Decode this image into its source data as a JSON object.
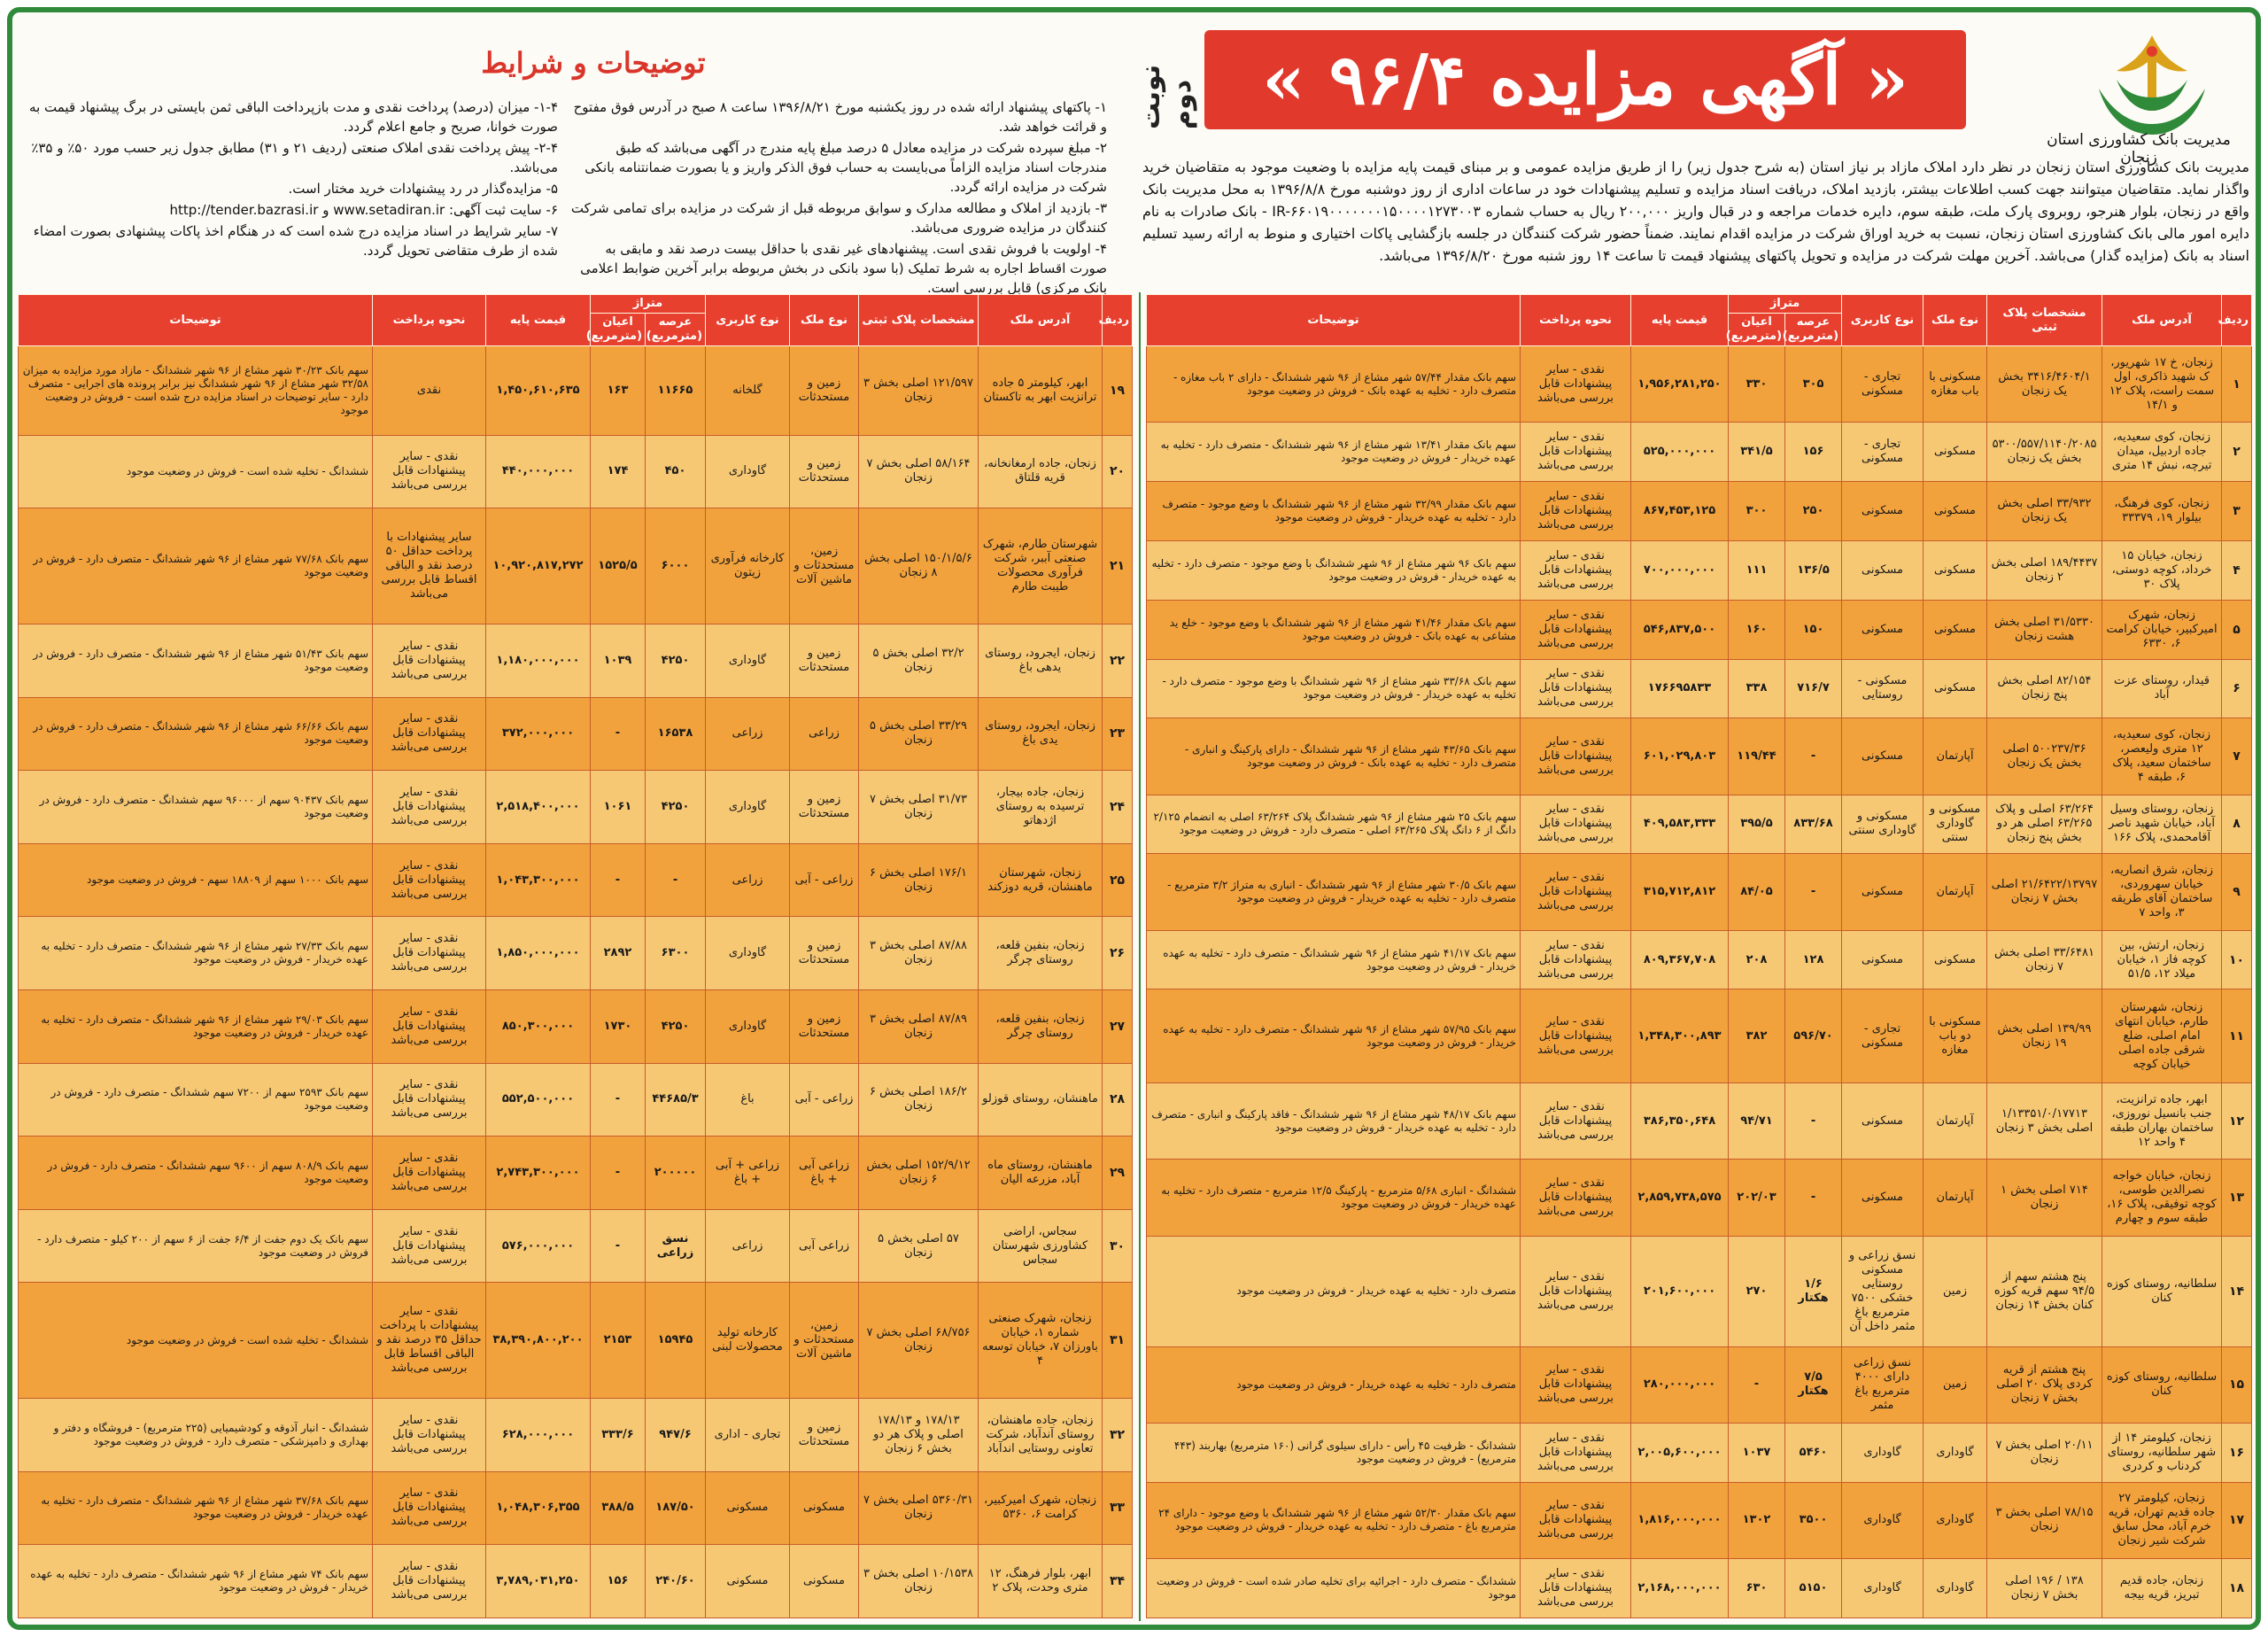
{
  "bank_name": "مدیریت بانک کشاورزی استان زنجان",
  "banner_title": "« آگهی مزایده ۹۶/۴ »",
  "round_label": "نوبت دوم",
  "intro_text": "مدیریت بانک کشاورزی استان زنجان در نظر دارد املاک مازاد بر نیاز استان (به شرح جدول زیر) را از طریق مزایده عمومی و بر مبنای قیمت پایه مزایده با وضعیت موجود به متقاضیان خرید واگذار نماید. متقاضیان میتوانند جهت کسب اطلاعات بیشتر، بازدید املاک، دریافت اسناد مزایده و تسلیم پیشنهادات خود در ساعات اداری از روز دوشنبه مورخ ۱۳۹۶/۸/۸ به محل مدیریت بانک واقع در زنجان، بلوار هنرجو، روبروی پارک ملت، طبقه سوم، دایره خدمات مراجعه و در قبال واریز ۲۰۰,۰۰۰ ریال به حساب شماره IR-۶۶۰۱۹۰۰۰۰۰۰۰۱۵۰۰۰۰۱۲۷۳۰۰۳ - بانک صادرات به نام دایره امور مالی بانک کشاورزی استان زنجان، نسبت به خرید اوراق شرکت در مزایده اقدام نمایند. ضمناً حضور شرکت کنندگان در جلسه بازگشایی پاکات اختیاری و منوط به ارائه رسید تسلیم اسناد به بانک (مزایده گذار) می‌باشد. آخرین مهلت شرکت در مزایده و تحویل پاکتهای پیشنهاد قیمت تا ساعت ۱۴ روز شنبه مورخ ۱۳۹۶/۸/۲۰ می‌باشد.",
  "conditions": {
    "title": "توضیحات و شرایط",
    "right_items": [
      "۱- پاکتهای پیشنهاد ارائه شده در روز یکشنبه مورخ ۱۳۹۶/۸/۲۱ ساعت ۸ صبح در آدرس فوق مفتوح و قرائت خواهد شد.",
      "۲- مبلغ سپرده شرکت در مزایده معادل ۵ درصد مبلغ پایه مندرج در آگهی می‌باشد که طبق مندرجات اسناد مزایده الزاماً می‌بایست به حساب فوق الذکر واریز و یا بصورت ضمانتنامه بانکی شرکت در مزایده ارائه گردد.",
      "۳- بازدید از املاک و مطالعه مدارک و سوابق مربوطه قبل از شرکت در مزایده برای تمامی شرکت کنندگان در مزایده ضروری می‌باشد.",
      "۴- اولویت با فروش نقدی است. پیشنهادهای غیر نقدی با حداقل بیست درصد نقد و مابقی به صورت اقساط اجاره به شرط تملیک (با سود بانکی در بخش مربوطه برابر آخرین ضوابط اعلامی بانک مرکزی) قابل بررسی است."
    ],
    "left_items": [
      "۱-۴- میزان (درصد) پرداخت نقدی و مدت بازپرداخت الباقی ثمن بایستی در برگ پیشنهاد قیمت به صورت خوانا، صریح و جامع اعلام گردد.",
      "۲-۴- پیش پرداخت نقدی املاک صنعتی (ردیف ۲۱ و ۳۱) مطابق جدول زیر حسب مورد ۵۰٪ و ۳۵٪ می‌باشد.",
      "۵- مزایده‌گذار در رد پیشنهادات خرید مختار است.",
      "۶- سایت ثبت آگهی: www.setadiran.ir و http://tender.bazrasi.ir",
      "۷- سایر شرایط در اسناد مزایده درج شده است که در هنگام اخذ پاکات پیشنهادی بصورت امضاء شده از طرف متقاضی تحویل گردد."
    ]
  },
  "table": {
    "headers": {
      "row": "ردیف",
      "address": "آدرس ملک",
      "plaque": "مشخصات پلاک ثبتی",
      "type": "نوع ملک",
      "usage": "نوع کاربری",
      "area_group": "متراژ",
      "land": "عرصه (مترمربع)",
      "building": "اعیان (مترمربع)",
      "price": "قیمت پایه",
      "payment": "نحوه پرداخت",
      "desc": "توضیحات"
    },
    "right_rows": [
      {
        "no": "۱",
        "address": "زنجان، خ ۱۷ شهریور، ک شهید ذاکری، اول سمت راست، پلاک ۱۲ و ۱۴/۱",
        "plaque": "۳۴۱۶/۴۶۰۴/۱ بخش یک زنجان",
        "type": "مسکونی با باب مغازه",
        "usage": "تجاری - مسکونی",
        "land": "۳۰۵",
        "building": "۳۳۰",
        "price": "۱,۹۵۶,۲۸۱,۲۵۰",
        "payment": "نقدی - سایر پیشنهادات قابل بررسی می‌باشد",
        "desc": "سهم بانک مقدار ۵۷/۴۴ شهر مشاع از ۹۶ شهر ششدانگ - دارای ۲ باب مغازه - متصرف دارد - تخلیه به عهده بانک - فروش در وضعیت موجود"
      },
      {
        "no": "۲",
        "address": "زنجان، کوی سعیدیه، جاده اردبیل، میدان تیرچه، نبش ۱۴ متری",
        "plaque": "۵۳۰۰/۵۵۷/۱۱۴۰/۲۰۸۵ بخش یک زنجان",
        "type": "مسکونی",
        "usage": "تجاری - مسکونی",
        "land": "۱۵۶",
        "building": "۳۴۱/۵",
        "price": "۵۲۵,۰۰۰,۰۰۰",
        "payment": "نقدی - سایر پیشنهادات قابل بررسی می‌باشد",
        "desc": "سهم بانک مقدار ۱۳/۴۱ شهر مشاع از ۹۶ شهر ششدانگ - متصرف دارد - تخلیه به عهده خریدار - فروش در وضعیت موجود"
      },
      {
        "no": "۳",
        "address": "زنجان، کوی فرهنگ، بیلوار ۱۹، ۳۳۳۷۹",
        "plaque": "۳۳/۹۳۲ اصلی بخش یک زنجان",
        "type": "مسکونی",
        "usage": "مسکونی",
        "land": "۲۵۰",
        "building": "۳۰۰",
        "price": "۸۶۷,۴۵۳,۱۲۵",
        "payment": "نقدی - سایر پیشنهادات قابل بررسی می‌باشد",
        "desc": "سهم بانک مقدار ۳۲/۹۹ شهر مشاع از ۹۶ شهر ششدانگ با وضع موجود - متصرف دارد - تخلیه به عهده خریدار - فروش در وضعیت موجود"
      },
      {
        "no": "۴",
        "address": "زنجان، خیابان ۱۵ خرداد، کوچه دوستی، پلاک ۳۰",
        "plaque": "۱۸۹/۴۴۳۷ اصلی بخش ۲ زنجان",
        "type": "مسکونی",
        "usage": "مسکونی",
        "land": "۱۳۶/۵",
        "building": "۱۱۱",
        "price": "۷۰۰,۰۰۰,۰۰۰",
        "payment": "نقدی - سایر پیشنهادات قابل بررسی می‌باشد",
        "desc": "سهم بانک ۹۶ شهر مشاع از ۹۶ شهر ششدانگ با وضع موجود - متصرف دارد - تخلیه به عهده خریدار - فروش در وضعیت موجود"
      },
      {
        "no": "۵",
        "address": "زنجان، شهرک امیرکبیر، خیابان کرامت ۶، ۶۳۳۰",
        "plaque": "۳۱/۵۳۳۰ اصلی بخش هشت زنجان",
        "type": "مسکونی",
        "usage": "مسکونی",
        "land": "۱۵۰",
        "building": "۱۶۰",
        "price": "۵۴۶,۸۳۷,۵۰۰",
        "payment": "نقدی - سایر پیشنهادات قابل بررسی می‌باشد",
        "desc": "سهم بانک مقدار ۴۱/۴۶ شهر مشاع از ۹۶ شهر ششدانگ با وضع موجود - خلع ید مشاعی به عهده بانک - فروش در وضعیت موجود"
      },
      {
        "no": "۶",
        "address": "قیدار، روستای عزت آباد",
        "plaque": "۸۲/۱۵۴ اصلی بخش پنج زنجان",
        "type": "مسکونی",
        "usage": "مسکونی - روستایی",
        "land": "۷۱۶/۷",
        "building": "۳۳۸",
        "price": "۱۷۶۶۹۵۸۳۳",
        "payment": "نقدی - سایر پیشنهادات قابل بررسی می‌باشد",
        "desc": "سهم بانک ۳۳/۶۸ شهر مشاع از ۹۶ شهر ششدانگ با وضع موجود - متصرف دارد - تخلیه به عهده خریدار - فروش در وضعیت موجود"
      },
      {
        "no": "۷",
        "address": "زنجان، کوی سعیدیه، ۱۲ متری ولیعصر، ساختمان سعید، پلاک ۶، طبقه ۴",
        "plaque": "۵۰۰۲۳۷/۳۶ اصلی بخش یک زنجان",
        "type": "آپارتمان",
        "usage": "مسکونی",
        "land": "-",
        "building": "۱۱۹/۴۴",
        "price": "۶۰۱,۰۲۹,۸۰۳",
        "payment": "نقدی - سایر پیشنهادات قابل بررسی می‌باشد",
        "desc": "سهم بانک ۴۳/۶۵ شهر مشاع از ۹۶ شهر ششدانگ - دارای پارکینگ و انباری - متصرف دارد - تخلیه به عهده بانک - فروش در وضعیت موجود"
      },
      {
        "no": "۸",
        "address": "زنجان، روستای وسیل آباد، خیابان شهید ناصر آقامحمدی، پلاک ۱۶۶",
        "plaque": "۶۳/۲۶۴ اصلی و پلاک ۶۳/۲۶۵ اصلی هر دو بخش پنج زنجان",
        "type": "مسکونی و گاوداری سنتی",
        "usage": "مسکونی و گاوداری سنتی",
        "land": "۸۳۳/۶۸",
        "building": "۳۹۵/۵",
        "price": "۴۰۹,۵۸۳,۳۳۳",
        "payment": "نقدی - سایر پیشنهادات قابل بررسی می‌باشد",
        "desc": "سهم بانک ۲۵ شهر مشاع از ۹۶ شهر ششدانگ پلاک ۶۳/۲۶۴ اصلی به انضمام ۲/۱۲۵ دانگ از ۶ دانگ پلاک ۶۳/۲۶۵ اصلی - متصرف دارد - فروش در وضعیت موجود"
      },
      {
        "no": "۹",
        "address": "زنجان، شرق انصاریه، خیابان سهروردی، ساختمان آقای طریقه ۳، واحد ۷",
        "plaque": "۲۱/۶۴۲۲/۱۳۷۹۷ اصلی بخش ۷ زنجان",
        "type": "آپارتمان",
        "usage": "مسکونی",
        "land": "-",
        "building": "۸۴/۰۵",
        "price": "۳۱۵,۷۱۲,۸۱۲",
        "payment": "نقدی - سایر پیشنهادات قابل بررسی می‌باشد",
        "desc": "سهم بانک ۳۰/۵ شهر مشاع از ۹۶ شهر ششدانگ - انباری به متراژ ۳/۲ مترمربع - متصرف دارد - تخلیه به عهده خریدار - فروش در وضعیت موجود"
      },
      {
        "no": "۱۰",
        "address": "زنجان، ارتش، بین کوچه فاز ۱، خیابان میلاد ۱۲، ۵۱/۵",
        "plaque": "۳۳/۶۴۸۱ اصلی بخش ۷ زنجان",
        "type": "مسکونی",
        "usage": "مسکونی",
        "land": "۱۲۸",
        "building": "۲۰۸",
        "price": "۸۰۹,۳۶۷,۷۰۸",
        "payment": "نقدی - سایر پیشنهادات قابل بررسی می‌باشد",
        "desc": "سهم بانک ۴۱/۱۷ شهر مشاع از ۹۶ شهر ششدانگ - متصرف دارد - تخلیه به عهده خریدار - فروش در وضعیت موجود"
      },
      {
        "no": "۱۱",
        "address": "زنجان، شهرستان طارم، خیابان انتهای امام اصلی، ضلع شرقی جاده اصلی خیابان کوچه",
        "plaque": "۱۳۹/۹۹ اصلی بخش ۱۹ زنجان",
        "type": "مسکونی با دو باب مغازه",
        "usage": "تجاری - مسکونی",
        "land": "۵۹۶/۷۰",
        "building": "۳۸۲",
        "price": "۱,۳۴۸,۳۰۰,۸۹۳",
        "payment": "نقدی - سایر پیشنهادات قابل بررسی می‌باشد",
        "desc": "سهم بانک ۵۷/۹۵ شهر مشاع از ۹۶ شهر ششدانگ - متصرف دارد - تخلیه به عهده خریدار - فروش در وضعیت موجود"
      },
      {
        "no": "۱۲",
        "address": "ابهر، جاده ترانزیت، جنب بانسیل نوروزی، ساختمان بهاران طبقه ۴ واحد ۱۲",
        "plaque": "۱/۱۳۳۵۱/۰/۱۷۷۱۳ اصلی بخش ۳ زنجان",
        "type": "آپارتمان",
        "usage": "مسکونی",
        "land": "-",
        "building": "۹۴/۷۱",
        "price": "۳۸۶,۳۵۰,۶۴۸",
        "payment": "نقدی - سایر پیشنهادات قابل بررسی می‌باشد",
        "desc": "سهم بانک ۴۸/۱۷ شهر مشاع از ۹۶ شهر ششدانگ - فاقد پارکینگ و انباری - متصرف دارد - تخلیه به عهده خریدار - فروش در وضعیت موجود"
      },
      {
        "no": "۱۳",
        "address": "زنجان، خیابان خواجه نصرالدین طوسی، کوچه توفیقی، پلاک ۱۶، طبقه سوم و چهارم",
        "plaque": "۷۱۴ اصلی بخش ۱ زنجان",
        "type": "آپارتمان",
        "usage": "مسکونی",
        "land": "-",
        "building": "۲۰۲/۰۳",
        "price": "۲,۸۵۹,۷۳۸,۵۷۵",
        "payment": "نقدی - سایر پیشنهادات قابل بررسی می‌باشد",
        "desc": "ششدانگ - انباری ۵/۶۸ مترمربع - پارکینگ ۱۲/۵ مترمربع - متصرف دارد - تخلیه به عهده خریدار - فروش در وضعیت موجود"
      },
      {
        "no": "۱۴",
        "address": "سلطانیه، روستای کوزه کنان",
        "plaque": "پنج هشتم سهم از ۹۴/۵ سهم قریه کوزه کنان بخش ۱۴ زنجان",
        "type": "زمین",
        "usage": "نسق زراعی و مسکونی روستایی خشکی ۷۵۰۰ مترمربع باغ مثمر داخل آن",
        "land": "۱/۶ هکتار",
        "building": "۲۷۰",
        "price": "۲۰۱,۶۰۰,۰۰۰",
        "payment": "نقدی - سایر پیشنهادات قابل بررسی می‌باشد",
        "desc": "متصرف دارد - تخلیه به عهده خریدار - فروش در وضعیت موجود"
      },
      {
        "no": "۱۵",
        "address": "سلطانیه، روستای کوزه کنان",
        "plaque": "پنج هشتم از قریه کردی پلاک ۲۰ اصلی بخش ۷ زنجان",
        "type": "زمین",
        "usage": "نسق زراعی دارای ۴۰۰۰ مترمربع باغ مثمر",
        "land": "۷/۵ هکتار",
        "building": "-",
        "price": "۲۸۰,۰۰۰,۰۰۰",
        "payment": "نقدی - سایر پیشنهادات قابل بررسی می‌باشد",
        "desc": "متصرف دارد - تخلیه به عهده خریدار - فروش در وضعیت موجود"
      },
      {
        "no": "۱۶",
        "address": "زنجان، کیلومتر ۱۴ از شهر سلطانیه، روستای کردناب و کردری",
        "plaque": "۲۰/۱۱ اصلی بخش ۷ زنجان",
        "type": "گاوداری",
        "usage": "گاوداری",
        "land": "۵۴۶۰",
        "building": "۱۰۳۷",
        "price": "۲,۰۰۵,۶۰۰,۰۰۰",
        "payment": "نقدی - سایر پیشنهادات قابل بررسی می‌باشد",
        "desc": "ششدانگ - ظرفیت ۴۵ رأس - دارای سیلوی گرانی (۱۶۰ مترمربع) بهاربند (۴۴۳ مترمربع) - فروش در وضعیت موجود"
      },
      {
        "no": "۱۷",
        "address": "زنجان، کیلومتر ۲۷ جاده قدیم تهران، قریه خرم آباد، محل سابق شرکت شیر زنجان",
        "plaque": "۷۸/۱۵ اصلی بخش ۳ زنجان",
        "type": "گاوداری",
        "usage": "گاوداری",
        "land": "۳۵۰۰",
        "building": "۱۳۰۲",
        "price": "۱,۸۱۶,۰۰۰,۰۰۰",
        "payment": "نقدی - سایر پیشنهادات قابل بررسی می‌باشد",
        "desc": "سهم بانک مقدار ۵۲/۳۰ شهر مشاع از ۹۶ شهر ششدانگ با وضع موجود - دارای ۲۴ مترمربع باغ - متصرف دارد - تخلیه به عهده خریدار - فروش در وضعیت موجود"
      },
      {
        "no": "۱۸",
        "address": "زنجان، جاده قدیم تبریز، قریه بیجه",
        "plaque": "۱۳۸ / ۱۹۶ اصلی بخش ۷ زنجان",
        "type": "گاوداری",
        "usage": "گاوداری",
        "land": "۵۱۵۰",
        "building": "۶۳۰",
        "price": "۲,۱۶۸,۰۰۰,۰۰۰",
        "payment": "نقدی - سایر پیشنهادات قابل بررسی می‌باشد",
        "desc": "ششدانگ - متصرف دارد - اجرائیه برای تخلیه صادر شده است - فروش در وضعیت موجود"
      }
    ],
    "left_rows": [
      {
        "no": "۱۹",
        "address": "ابهر، کیلومتر ۵ جاده ترانزیت ابهر به تاکستان",
        "plaque": "۱۲۱/۵۹۷ اصلی بخش ۳ زنجان",
        "type": "زمین و مستحدثات",
        "usage": "گلخانه",
        "land": "۱۱۶۶۵",
        "building": "۱۶۳",
        "price": "۱,۴۵۰,۶۱۰,۶۳۵",
        "payment": "نقدی",
        "desc": "سهم بانک ۳۰/۲۳ شهر مشاع از ۹۶ شهر ششدانگ - مازاد مورد مزایده به میزان ۳۲/۵۸ شهر مشاع از ۹۶ شهر ششدانگ نیز برابر پرونده های اجرایی - متصرف دارد - سایر توضیحات در اسناد مزایده درج شده است - فروش در وضعیت موجود"
      },
      {
        "no": "۲۰",
        "address": "زنجان، جاده ارمغانخانه، قریه قلتاق",
        "plaque": "۵۸/۱۶۴ اصلی بخش ۷ زنجان",
        "type": "زمین و مستحدثات",
        "usage": "گاوداری",
        "land": "۴۵۰",
        "building": "۱۷۴",
        "price": "۴۴۰,۰۰۰,۰۰۰",
        "payment": "نقدی - سایر پیشنهادات قابل بررسی می‌باشد",
        "desc": "ششدانگ - تخلیه شده است - فروش در وضعیت موجود"
      },
      {
        "no": "۲۱",
        "address": "شهرستان طارم، شهرک صنعتی آببر، شرکت فرآوری محصولات طیبت طارم",
        "plaque": "۱۵۰/۱/۵/۶ اصلی بخش ۸ زنجان",
        "type": "زمین، مستحدثات و ماشین آلات",
        "usage": "کارخانه فرآوری زیتون",
        "land": "۶۰۰۰",
        "building": "۱۵۲۵/۵",
        "price": "۱۰,۹۲۰,۸۱۷,۲۷۲",
        "payment": "سایر پیشنهادات با پرداخت حداقل ۵۰ درصد نقد و الباقی اقساط قابل بررسی می‌باشد",
        "desc": "سهم بانک ۷۷/۶۸ شهر مشاع از ۹۶ شهر ششدانگ - متصرف دارد - فروش در وضعیت موجود"
      },
      {
        "no": "۲۲",
        "address": "زنجان، ایجرود، روستای یدهی باغ",
        "plaque": "۳۲/۲ اصلی بخش ۵ زنجان",
        "type": "زمین و مستحدثات",
        "usage": "گاوداری",
        "land": "۴۲۵۰",
        "building": "۱۰۳۹",
        "price": "۱,۱۸۰,۰۰۰,۰۰۰",
        "payment": "نقدی - سایر پیشنهادات قابل بررسی می‌باشد",
        "desc": "سهم بانک ۵۱/۴۳ شهر مشاع از ۹۶ شهر ششدانگ - متصرف دارد - فروش در وضعیت موجود"
      },
      {
        "no": "۲۳",
        "address": "زنجان، ایجرود، روستای یدی باغ",
        "plaque": "۳۳/۲۹ اصلی بخش ۵ زنجان",
        "type": "زراعی",
        "usage": "زراعی",
        "land": "۱۶۵۳۸",
        "building": "-",
        "price": "۳۷۲,۰۰۰,۰۰۰",
        "payment": "نقدی - سایر پیشنهادات قابل بررسی می‌باشد",
        "desc": "سهم بانک ۶۶/۶۶ شهر مشاع از ۹۶ شهر ششدانگ - متصرف دارد - فروش در وضعیت موجود"
      },
      {
        "no": "۲۴",
        "address": "زنجان، جاده بیجار، ترسیده به روستای اژدهاتو",
        "plaque": "۳۱/۷۳ اصلی بخش ۷ زنجان",
        "type": "زمین و مستحدثات",
        "usage": "گاوداری",
        "land": "۴۲۵۰",
        "building": "۱۰۶۱",
        "price": "۲,۵۱۸,۴۰۰,۰۰۰",
        "payment": "نقدی - سایر پیشنهادات قابل بررسی می‌باشد",
        "desc": "سهم بانک ۹۰۴۳۷ سهم از ۹۶۰۰۰ سهم ششدانگ - متصرف دارد - فروش در وضعیت موجود"
      },
      {
        "no": "۲۵",
        "address": "زنجان، شهرستان ماهنشان، قریه دوزکند",
        "plaque": "۱۷۶/۱ اصلی بخش ۶ زنجان",
        "type": "زراعی - آبی",
        "usage": "زراعی",
        "land": "-",
        "building": "-",
        "price": "۱,۰۴۳,۳۰۰,۰۰۰",
        "payment": "نقدی - سایر پیشنهادات قابل بررسی می‌باشد",
        "desc": "سهم بانک ۱۰۰۰ سهم از ۱۸۸۰۹ سهم - فروش در وضعیت موجود"
      },
      {
        "no": "۲۶",
        "address": "زنجان، بنفین قلعه، روستای چرگر",
        "plaque": "۸۷/۸۸ اصلی بخش ۳ زنجان",
        "type": "زمین و مستحدثات",
        "usage": "گاوداری",
        "land": "۶۳۰۰",
        "building": "۲۸۹۲",
        "price": "۱,۸۵۰,۰۰۰,۰۰۰",
        "payment": "نقدی - سایر پیشنهادات قابل بررسی می‌باشد",
        "desc": "سهم بانک ۲۷/۳۳ شهر مشاع از ۹۶ شهر ششدانگ - متصرف دارد - تخلیه به عهده خریدار - فروش در وضعیت موجود"
      },
      {
        "no": "۲۷",
        "address": "زنجان، بنفین قلعه، روستای چرگر",
        "plaque": "۸۷/۸۹ اصلی بخش ۳ زنجان",
        "type": "زمین و مستحدثات",
        "usage": "گاوداری",
        "land": "۴۲۵۰",
        "building": "۱۷۳۰",
        "price": "۸۵۰,۳۰۰,۰۰۰",
        "payment": "نقدی - سایر پیشنهادات قابل بررسی می‌باشد",
        "desc": "سهم بانک ۲۹/۰۳ شهر مشاع از ۹۶ شهر ششدانگ - متصرف دارد - تخلیه به عهده خریدار - فروش در وضعیت موجود"
      },
      {
        "no": "۲۸",
        "address": "ماهنشان، روستای قوزلو",
        "plaque": "۱۸۶/۲ اصلی بخش ۶ زنجان",
        "type": "زراعی - آبی",
        "usage": "باغ",
        "land": "۴۴۶۸۵/۳",
        "building": "-",
        "price": "۵۵۲,۵۰۰,۰۰۰",
        "payment": "نقدی - سایر پیشنهادات قابل بررسی می‌باشد",
        "desc": "سهم بانک ۲۵۹۳ سهم از ۷۲۰۰ سهم ششدانگ - متصرف دارد - فروش در وضعیت موجود"
      },
      {
        "no": "۲۹",
        "address": "ماهنشان، روستای ماه آباد، مزرعه الیان",
        "plaque": "۱۵۲/۹/۱۲ اصلی بخش ۶ زنجان",
        "type": "زراعی آبی + باغ",
        "usage": "زراعی + آبی + باغ",
        "land": "۲۰۰۰۰۰",
        "building": "-",
        "price": "۲,۷۴۳,۳۰۰,۰۰۰",
        "payment": "نقدی - سایر پیشنهادات قابل بررسی می‌باشد",
        "desc": "سهم بانک ۸۰۸/۹ سهم از ۹۶۰۰ سهم ششدانگ - متصرف دارد - فروش در وضعیت موجود"
      },
      {
        "no": "۳۰",
        "address": "سجاس، اراضی کشاورزی شهرستان سجاس",
        "plaque": "۵۷ اصلی بخش ۵ زنجان",
        "type": "زراعی آبی",
        "usage": "زراعی",
        "land": "نسق زراعی",
        "building": "-",
        "price": "۵۷۶,۰۰۰,۰۰۰",
        "payment": "نقدی - سایر پیشنهادات قابل بررسی می‌باشد",
        "desc": "سهم بانک یک دوم جفت از ۶/۴ جفت از ۶ سهم از ۲۰۰ کیلو - متصرف دارد - فروش در وضعیت موجود"
      },
      {
        "no": "۳۱",
        "address": "زنجان، شهرک صنعتی شماره ۱، خیابان باورزان ۷، خیابان توسعه ۴",
        "plaque": "۶۸/۷۵۶ اصلی بخش ۷ زنجان",
        "type": "زمین، مستحدثات و ماشین آلات",
        "usage": "کارخانه تولید محصولات لبنی",
        "land": "۱۵۹۴۵",
        "building": "۲۱۵۳",
        "price": "۳۸,۳۹۰,۸۰۰,۲۰۰",
        "payment": "نقدی - سایر پیشنهادات با پرداخت حداقل ۳۵ درصد نقد و الباقی اقساط قابل بررسی می‌باشد",
        "desc": "ششدانگ - تخلیه شده است - فروش در وضعیت موجود"
      },
      {
        "no": "۳۲",
        "address": "زنجان، جاده ماهنشان، روستای آندآباد، شرکت تعاونی روستایی اندآباد",
        "plaque": "۱۷۸/۱۳ و ۱۷۸/۱۳ اصلی و پلاک هر دو بخش ۶ زنجان",
        "type": "زمین و مستحدثات",
        "usage": "تجاری - اداری",
        "land": "۹۴۷/۶",
        "building": "۳۳۳/۶",
        "price": "۶۲۸,۰۰۰,۰۰۰",
        "payment": "نقدی - سایر پیشنهادات قابل بررسی می‌باشد",
        "desc": "ششدانگ - انبار آذوقه و کودشیمیایی (۲۲۵ مترمربع) - فروشگاه و دفتر و بهداری و دامپزشکی - متصرف دارد - فروش در وضعیت موجود"
      },
      {
        "no": "۳۳",
        "address": "زنجان، شهرک امیرکبیر، کرامت ۶، ۵۳۶۰",
        "plaque": "۵۳۶۰/۳۱ اصلی بخش ۷ زنجان",
        "type": "مسکونی",
        "usage": "مسکونی",
        "land": "۱۸۷/۵۰",
        "building": "۳۸۸/۵",
        "price": "۱,۰۴۸,۳۰۶,۳۵۵",
        "payment": "نقدی - سایر پیشنهادات قابل بررسی می‌باشد",
        "desc": "سهم بانک ۳۷/۶۸ شهر مشاع از ۹۶ شهر ششدانگ - متصرف دارد - تخلیه به عهده خریدار - فروش در وضعیت موجود"
      },
      {
        "no": "۳۴",
        "address": "ابهر، بلوار فرهنگ، ۱۲ متری وحدت، پلاک ۲",
        "plaque": "۱۰/۱۵۳۸ اصلی بخش ۳ زنجان",
        "type": "مسکونی",
        "usage": "مسکونی",
        "land": "۲۴۰/۶۰",
        "building": "۱۵۶",
        "price": "۳,۷۸۹,۰۳۱,۲۵۰",
        "payment": "نقدی - سایر پیشنهادات قابل بررسی می‌باشد",
        "desc": "سهم بانک ۷۴ شهر مشاع از ۹۶ شهر ششدانگ - متصرف دارد - تخلیه به عهده خریدار - فروش در وضعیت موجود"
      }
    ]
  }
}
